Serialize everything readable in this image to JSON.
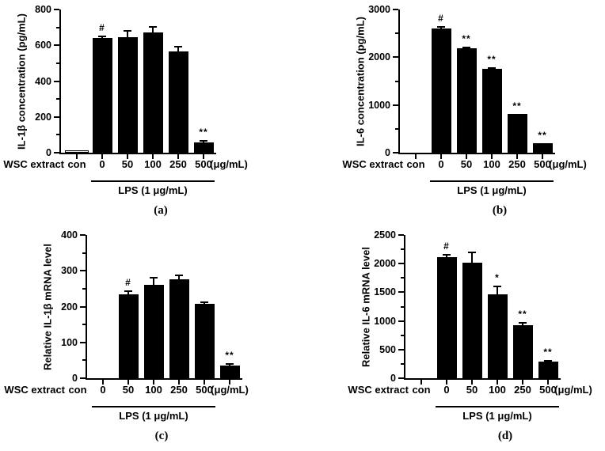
{
  "figure": {
    "background": "#ffffff",
    "bar_color": "#000000",
    "axis_color": "#000000",
    "control_bar_fill": "#e4e4e4",
    "text_color": "#000000"
  },
  "chart_data": [
    {
      "type": "bar",
      "panel_label": "(a)",
      "ylabel": "IL-1β concentration (pg/mL)",
      "x_prefix": "WSC extract",
      "x_units": "(μg/mL)",
      "group_label": "LPS (1 μg/mL)",
      "categories": [
        "con",
        "0",
        "50",
        "100",
        "250",
        "500"
      ],
      "ylim": [
        0,
        800
      ],
      "ytick_step": 200,
      "yminor_step": 100,
      "grid": false,
      "legend": "none",
      "bars": [
        {
          "category": "con",
          "value": 15,
          "err": 0,
          "sig": "",
          "control": true,
          "tick": 0
        },
        {
          "category": "0",
          "value": 640,
          "err": 15,
          "sig": "#",
          "control": false,
          "tick": 1
        },
        {
          "category": "50",
          "value": 645,
          "err": 40,
          "sig": "",
          "control": false,
          "tick": 2
        },
        {
          "category": "100",
          "value": 670,
          "err": 35,
          "sig": "",
          "control": false,
          "tick": 3
        },
        {
          "category": "250",
          "value": 565,
          "err": 30,
          "sig": "",
          "control": false,
          "tick": 4
        },
        {
          "category": "500",
          "value": 57,
          "err": 12,
          "sig": "**",
          "control": false,
          "tick": 5
        }
      ],
      "layout": {
        "plot_left": 77,
        "label_base": 77
      }
    },
    {
      "type": "bar",
      "panel_label": "(b)",
      "ylabel": "IL-6 concentration (pg/mL)",
      "x_prefix": "WSC extract",
      "x_units": "(μg/mL)",
      "group_label": "LPS (1 μg/mL)",
      "categories": [
        "con",
        "0",
        "50",
        "100",
        "250",
        "500"
      ],
      "ylim": [
        0,
        3000
      ],
      "ytick_step": 1000,
      "yminor_step": 500,
      "grid": false,
      "legend": "none",
      "bars": [
        {
          "category": "con",
          "value": 0,
          "err": 0,
          "sig": "",
          "control": true,
          "tick": 0
        },
        {
          "category": "0",
          "value": 2600,
          "err": 50,
          "sig": "#",
          "control": false,
          "tick": 1
        },
        {
          "category": "50",
          "value": 2190,
          "err": 30,
          "sig": "**",
          "control": false,
          "tick": 2
        },
        {
          "category": "100",
          "value": 1760,
          "err": 35,
          "sig": "**",
          "control": false,
          "tick": 3
        },
        {
          "category": "250",
          "value": 815,
          "err": 0,
          "sig": "**",
          "control": false,
          "tick": 4
        },
        {
          "category": "500",
          "value": 195,
          "err": 0,
          "sig": "**",
          "control": false,
          "tick": 5
        }
      ],
      "layout": {
        "plot_left": 123,
        "label_base": 123
      }
    },
    {
      "type": "bar",
      "panel_label": "(c)",
      "ylabel": "Relative IL-1β mRNA level",
      "x_prefix": "WSC extract",
      "x_units": "(μg/mL)",
      "group_label": "LPS (1 μg/mL)",
      "categories": [
        "con",
        "0",
        "50",
        "100",
        "250",
        "500"
      ],
      "ylim": [
        0,
        400
      ],
      "ytick_step": 100,
      "yminor_step": 50,
      "grid": false,
      "legend": "none",
      "bars": [
        {
          "category": "con",
          "value": 0,
          "err": 0,
          "sig": "",
          "control": true,
          "tick": 0
        },
        {
          "category": "0",
          "value": 235,
          "err": 10,
          "sig": "#",
          "control": false,
          "tick": 1
        },
        {
          "category": "50",
          "value": 260,
          "err": 22,
          "sig": "",
          "control": false,
          "tick": 2
        },
        {
          "category": "100",
          "value": 277,
          "err": 13,
          "sig": "",
          "control": false,
          "tick": 3
        },
        {
          "category": "250",
          "value": 207,
          "err": 7,
          "sig": "",
          "control": false,
          "tick": 4
        },
        {
          "category": "500",
          "value": 35,
          "err": 6,
          "sig": "**",
          "control": false,
          "tick": 5
        }
      ],
      "layout": {
        "plot_left": 110,
        "label_base": 78
      }
    },
    {
      "type": "bar",
      "panel_label": "(d)",
      "ylabel": "Relative IL-6 mRNA level",
      "x_prefix": "WSC extract",
      "x_units": "(μg/mL)",
      "group_label": "LPS (1 μg/mL)",
      "categories": [
        "con",
        "0",
        "50",
        "100",
        "250",
        "500"
      ],
      "ylim": [
        0,
        2500
      ],
      "ytick_step": 500,
      "yminor_step": 250,
      "grid": false,
      "legend": "none",
      "bars": [
        {
          "category": "con",
          "value": 0,
          "err": 0,
          "sig": "",
          "control": true,
          "tick": 0
        },
        {
          "category": "0",
          "value": 2110,
          "err": 60,
          "sig": "#",
          "control": false,
          "tick": 1
        },
        {
          "category": "50",
          "value": 2020,
          "err": 190,
          "sig": "",
          "control": false,
          "tick": 2
        },
        {
          "category": "100",
          "value": 1470,
          "err": 140,
          "sig": "*",
          "control": false,
          "tick": 3
        },
        {
          "category": "250",
          "value": 930,
          "err": 50,
          "sig": "**",
          "control": false,
          "tick": 4
        },
        {
          "category": "500",
          "value": 290,
          "err": 30,
          "sig": "**",
          "control": false,
          "tick": 5
        }
      ],
      "layout": {
        "plot_left": 130,
        "label_base": 130
      }
    }
  ]
}
